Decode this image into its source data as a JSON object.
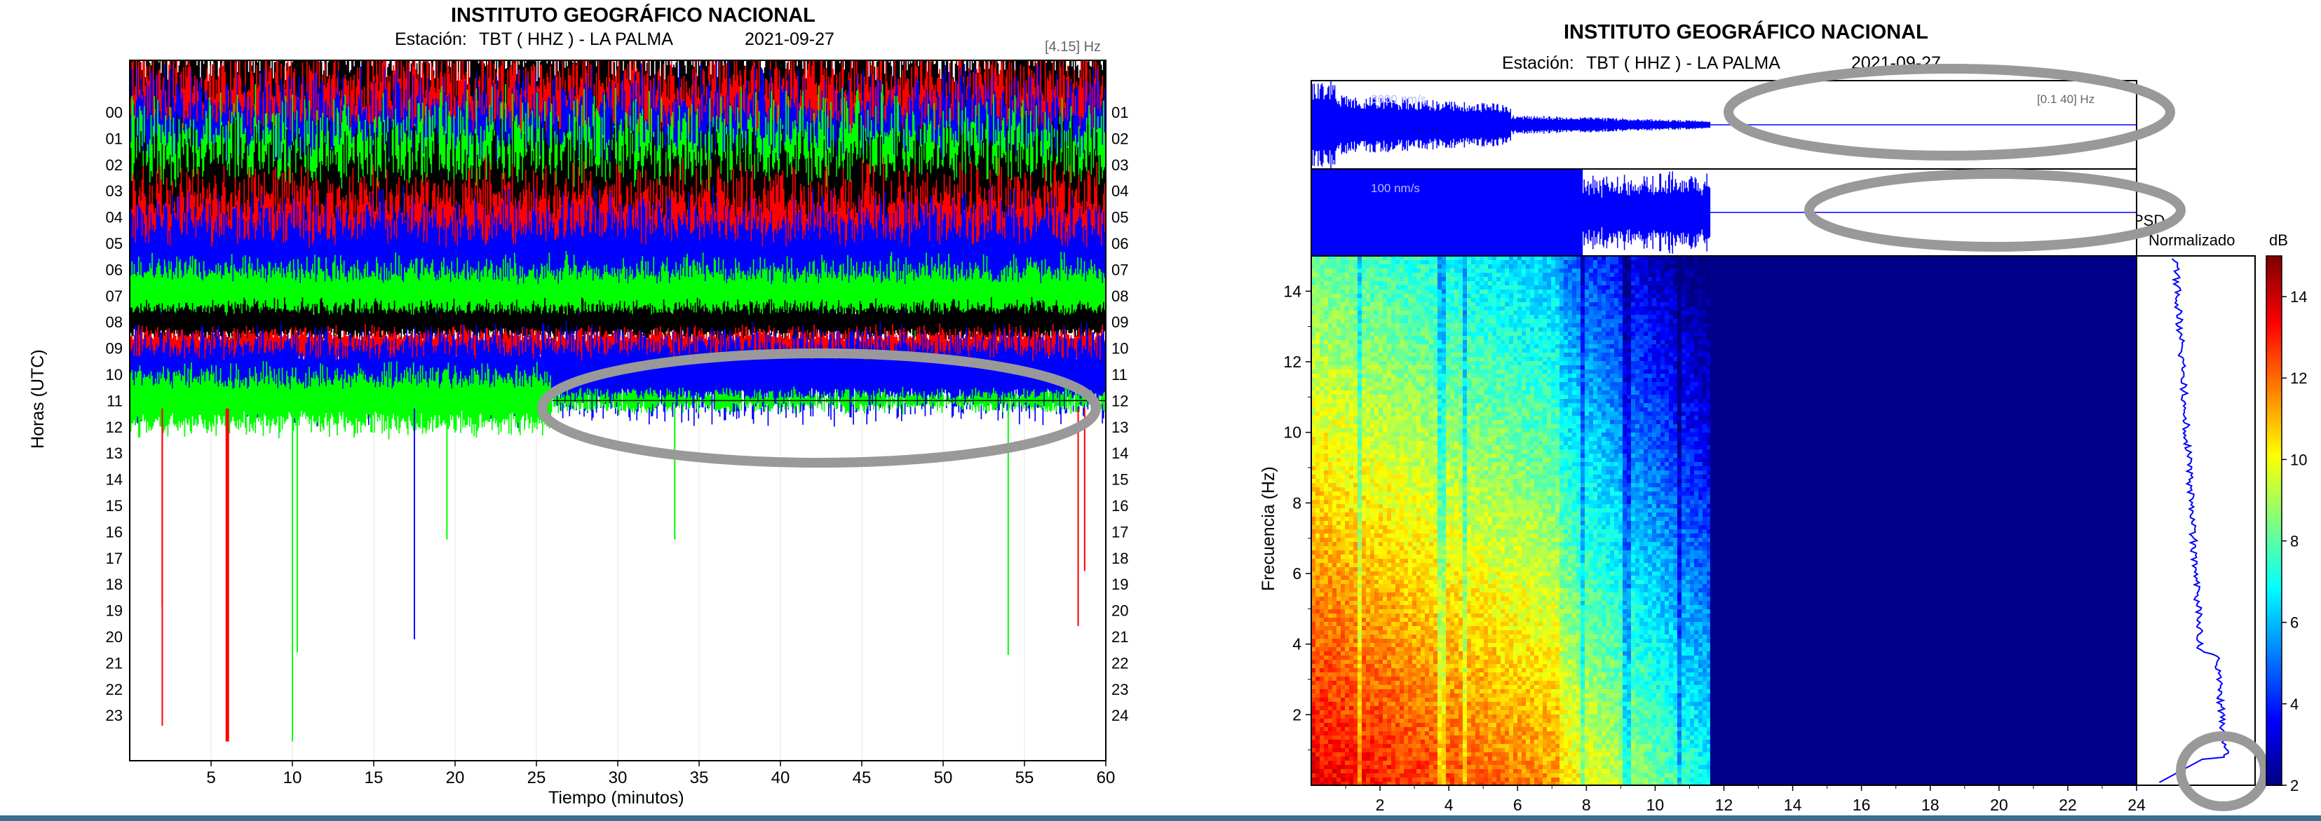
{
  "left_panel": {
    "title": "INSTITUTO GEOGRÁFICO NACIONAL",
    "station_label": "Estación:",
    "station": "TBT ( HHZ ) - LA PALMA",
    "date": "2021-09-27",
    "filter": "[4.15] Hz",
    "xlabel": "Tiempo (minutos)",
    "ylabel": "Horas (UTC)"
  },
  "right_panel": {
    "title": "INSTITUTO GEOGRÁFICO NACIONAL",
    "station_label": "Estación:",
    "station": "TBT ( HHZ ) - LA PALMA",
    "date": "2021-09-27",
    "trace1_scale": "3000 nm/s",
    "trace1_filter": "[0.1 40] Hz",
    "trace2_scale": "100 nm/s",
    "psd_title_1": "PSD",
    "psd_title_2": "Normalizado",
    "colorbar_unit": "dB",
    "ylabel": "Frecuencia (Hz)"
  },
  "colors": {
    "red": "#ff0000",
    "green": "#00ff00",
    "blue": "#0000ff",
    "black": "#000000",
    "spectrogram_empty": "#00008b",
    "annotation_ellipse": "#999999"
  },
  "chart_data": [
    {
      "type": "line",
      "subtype": "helicorder",
      "xlabel": "Tiempo (minutos)",
      "ylabel": "Horas (UTC)",
      "xlim": [
        0,
        60
      ],
      "x_ticks": [
        5,
        10,
        15,
        20,
        25,
        30,
        35,
        40,
        45,
        50,
        55,
        60
      ],
      "y_ticks_left": [
        "00",
        "01",
        "02",
        "03",
        "04",
        "05",
        "06",
        "07",
        "08",
        "09",
        "10",
        "11",
        "12",
        "13",
        "14",
        "15",
        "16",
        "17",
        "18",
        "19",
        "20",
        "21",
        "22",
        "23"
      ],
      "y_ticks_right": [
        "01",
        "02",
        "03",
        "04",
        "05",
        "06",
        "07",
        "08",
        "09",
        "10",
        "11",
        "12",
        "13",
        "14",
        "15",
        "16",
        "17",
        "18",
        "19",
        "20",
        "21",
        "22",
        "23",
        "24"
      ],
      "record_end": {
        "hour": 11,
        "minute": 60
      },
      "trace_color_cycle": [
        "black",
        "red",
        "blue",
        "green"
      ],
      "spikes": [
        {
          "minute": 2,
          "hour": 18.8,
          "color": "red"
        },
        {
          "minute": 2,
          "hour": 23.4,
          "color": "red"
        },
        {
          "minute": 6,
          "hour": 24.0,
          "color": "red"
        },
        {
          "minute": 10,
          "hour": 24.0,
          "color": "green"
        },
        {
          "minute": 10.3,
          "hour": 20.6,
          "color": "green"
        },
        {
          "minute": 17.5,
          "hour": 20.1,
          "color": "blue"
        },
        {
          "minute": 19.5,
          "hour": 16.3,
          "color": "green"
        },
        {
          "minute": 33.5,
          "hour": 16.3,
          "color": "green"
        },
        {
          "minute": 54,
          "hour": 20.7,
          "color": "green"
        },
        {
          "minute": 58.3,
          "hour": 19.6,
          "color": "red"
        },
        {
          "minute": 58.7,
          "hour": 17.5,
          "color": "red"
        }
      ]
    },
    {
      "type": "heatmap",
      "subtype": "spectrogram",
      "ylabel": "Frecuencia (Hz)",
      "x_ticks": [
        2,
        4,
        6,
        8,
        10,
        12,
        14,
        16,
        18,
        20,
        22,
        24
      ],
      "y_ticks": [
        2,
        4,
        6,
        8,
        10,
        12,
        14
      ],
      "xlim": [
        0,
        24
      ],
      "ylim": [
        0,
        15
      ],
      "data_end_x": 11.6,
      "colorbar": {
        "unit": "dB",
        "ticks": [
          2,
          4,
          6,
          8,
          10,
          12,
          14
        ],
        "range": [
          2,
          15
        ]
      }
    },
    {
      "type": "line",
      "subtype": "psd",
      "title": "PSD Normalizado",
      "ylim": [
        0,
        15
      ]
    }
  ]
}
